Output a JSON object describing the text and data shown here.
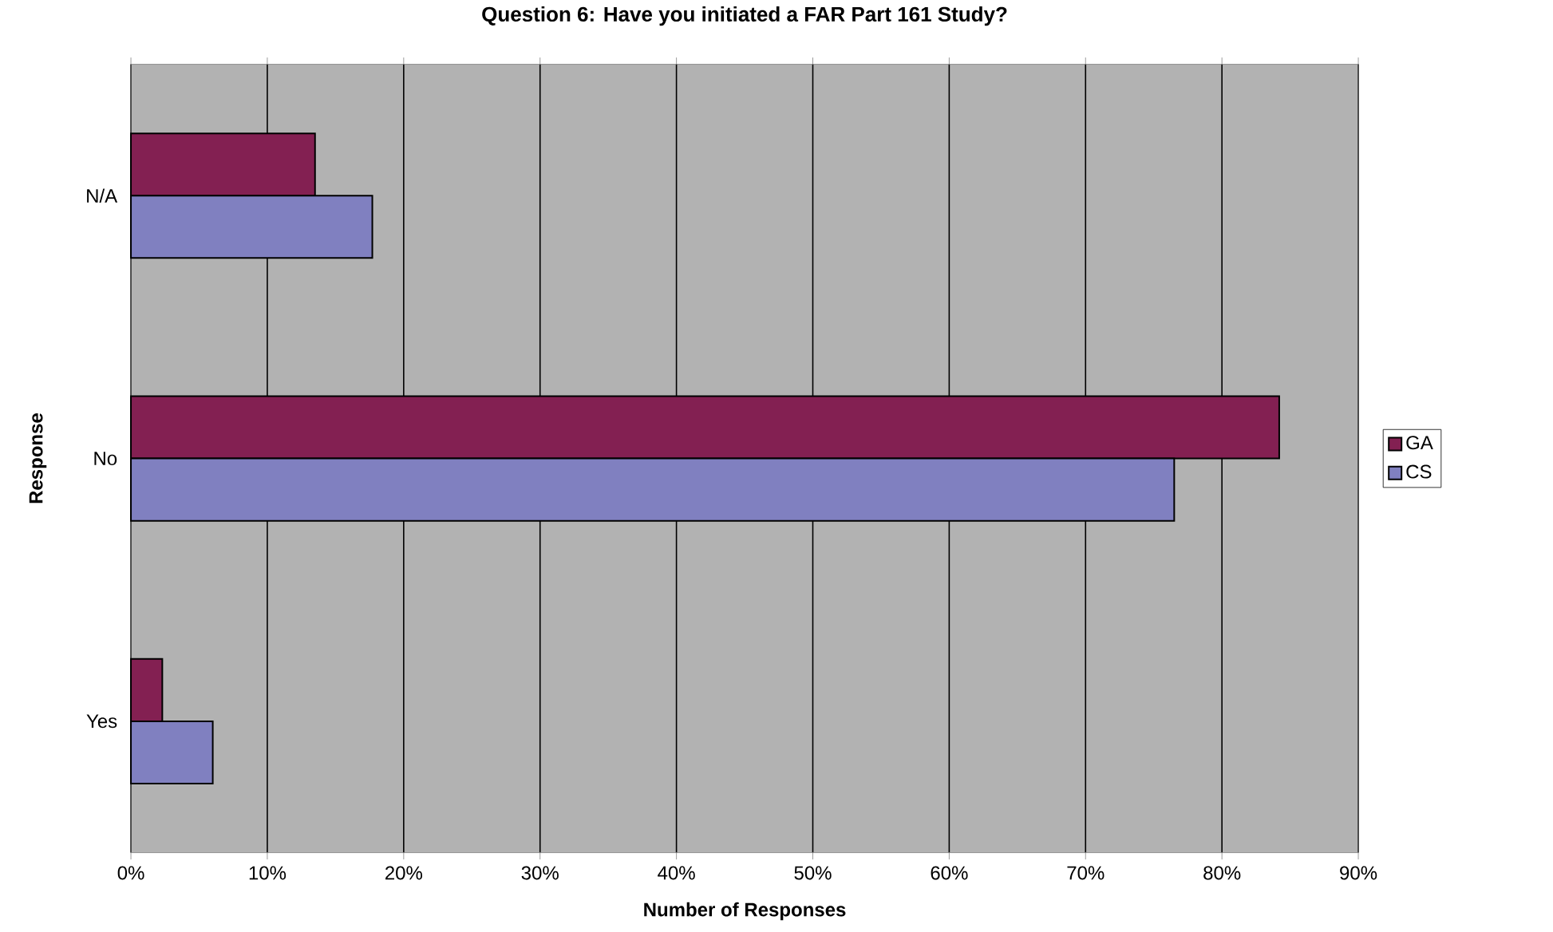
{
  "chart_data": {
    "type": "bar",
    "orientation": "horizontal",
    "title": "Question 6: Have you initiated a FAR Part 161 Study?",
    "xlabel": "Number of Responses",
    "ylabel": "Response",
    "categories": [
      "N/A",
      "No",
      "Yes"
    ],
    "series": [
      {
        "name": "GA",
        "color": "#832052",
        "values": [
          13.5,
          84.2,
          2.3
        ]
      },
      {
        "name": "CS",
        "color": "#8080c0",
        "values": [
          17.7,
          76.5,
          6.0
        ]
      }
    ],
    "xlim": [
      0,
      90
    ],
    "xticks": [
      {
        "value": 0,
        "label": "0%"
      },
      {
        "value": 10,
        "label": "10%"
      },
      {
        "value": 20,
        "label": "20%"
      },
      {
        "value": 30,
        "label": "30%"
      },
      {
        "value": 40,
        "label": "40%"
      },
      {
        "value": 50,
        "label": "50%"
      },
      {
        "value": 60,
        "label": "60%"
      },
      {
        "value": 70,
        "label": "70%"
      },
      {
        "value": 80,
        "label": "80%"
      },
      {
        "value": 90,
        "label": "90%"
      }
    ],
    "grid": "x",
    "legend": "right"
  }
}
